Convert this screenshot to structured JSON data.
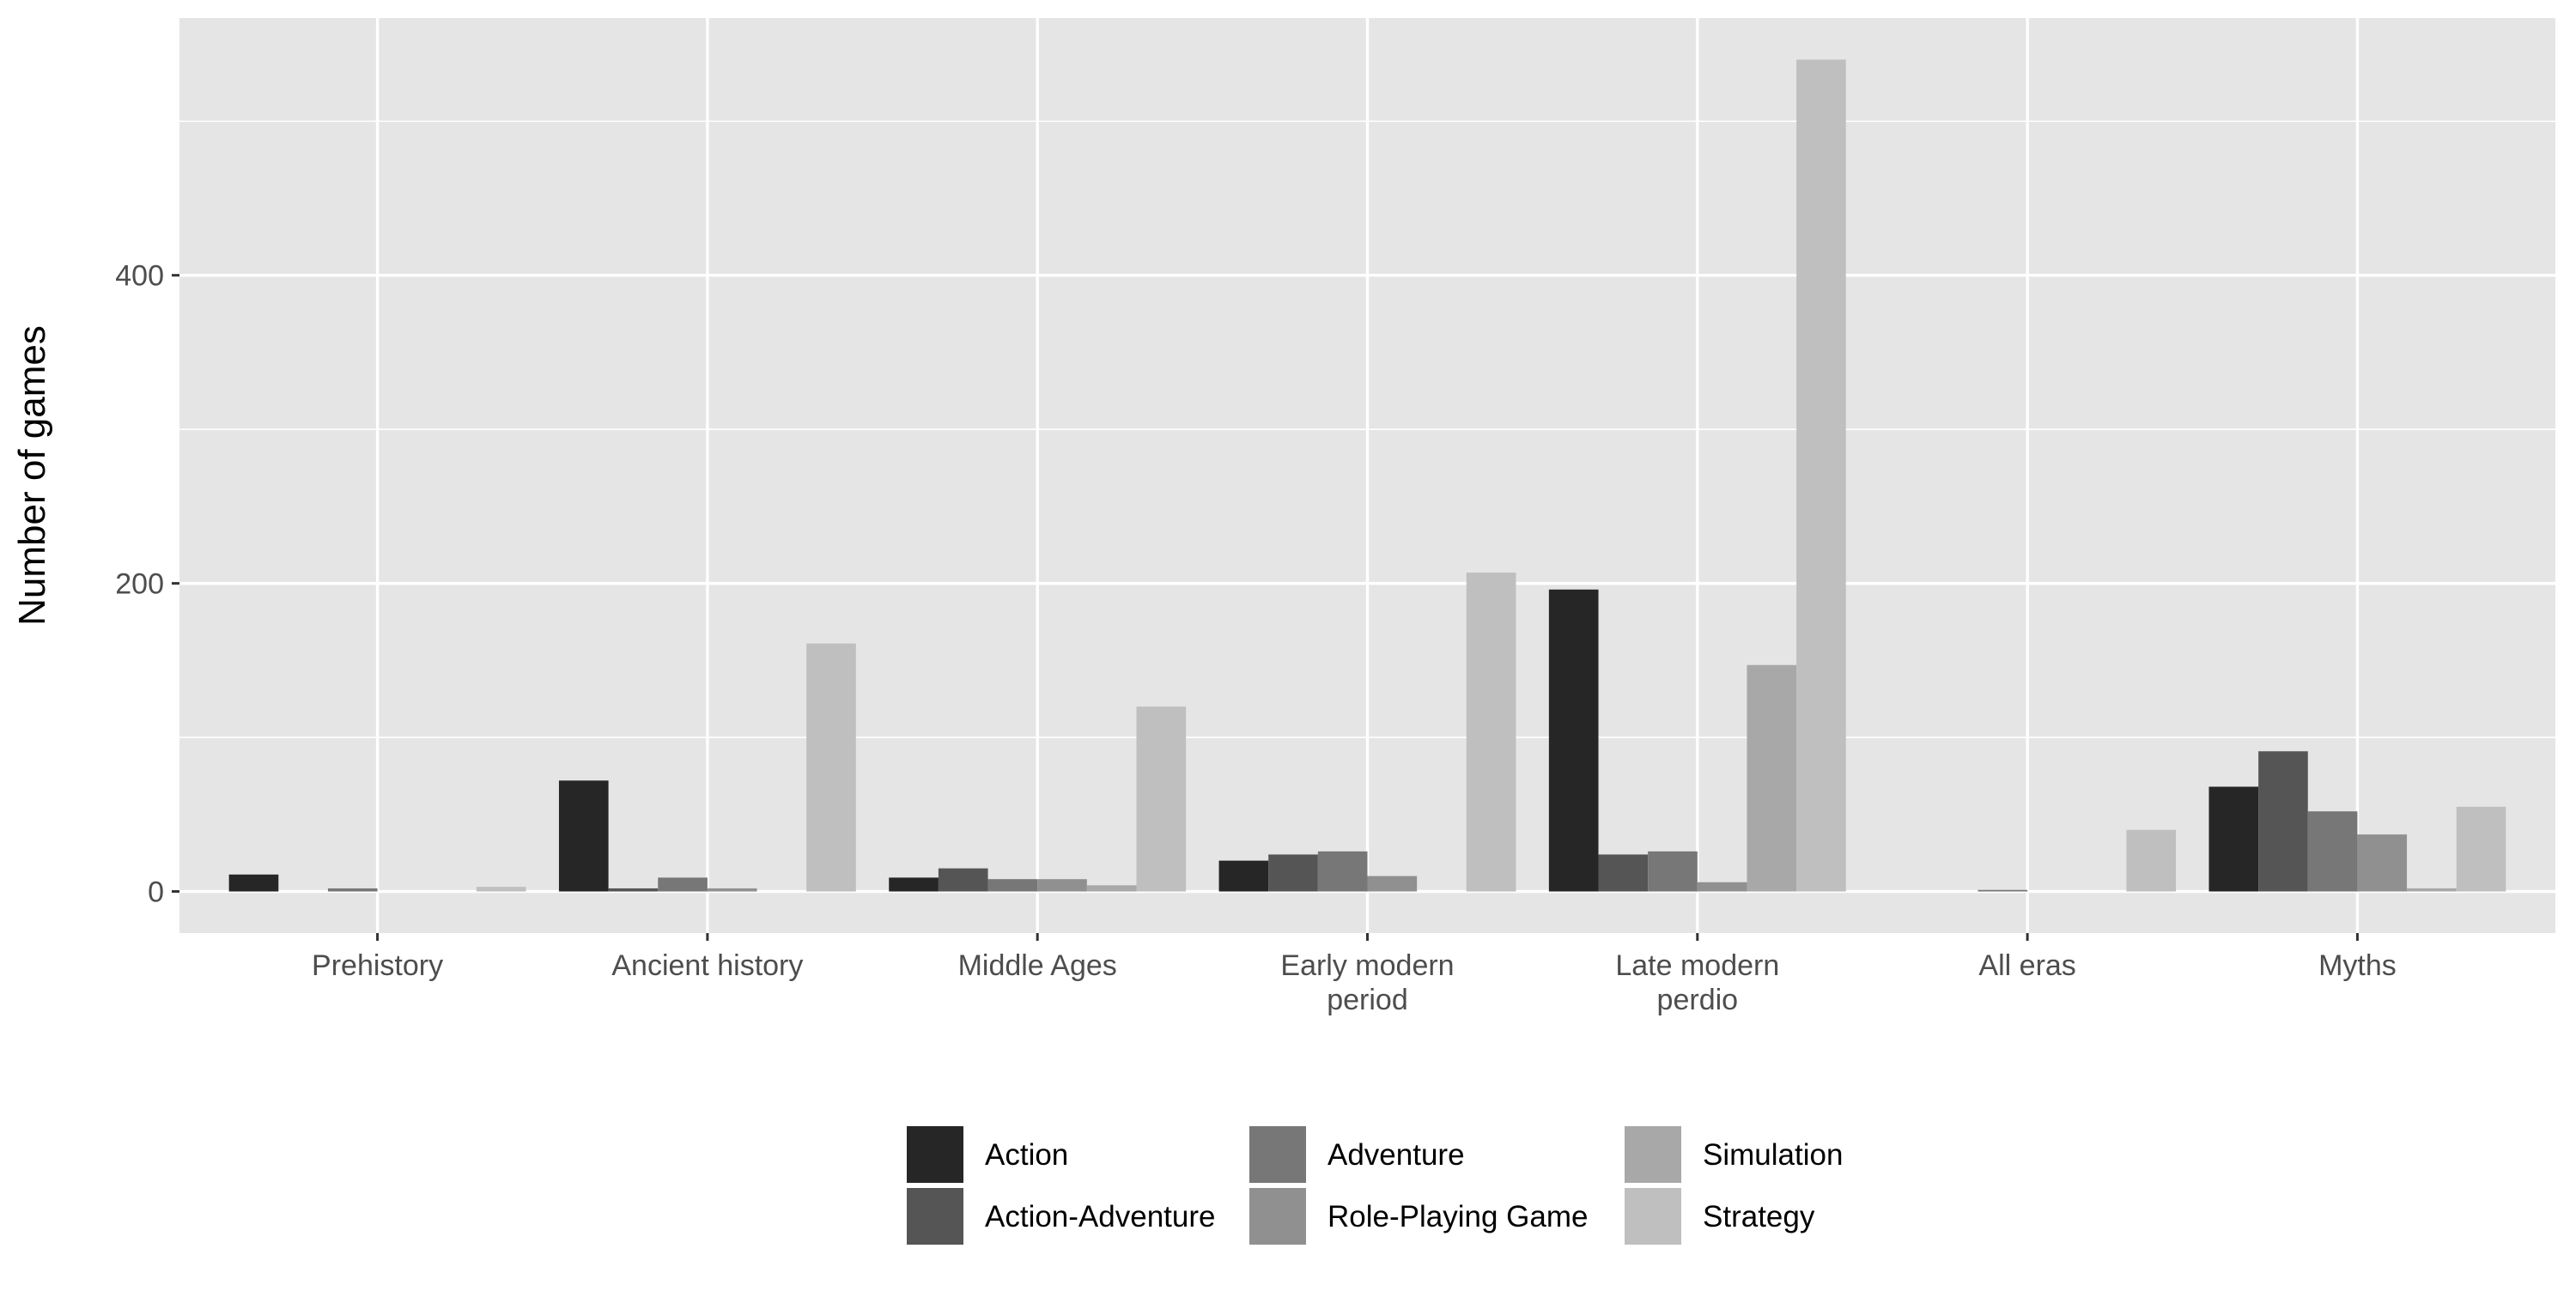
{
  "chart_data": {
    "type": "bar",
    "title": "",
    "xlabel": "",
    "ylabel": "Number of games",
    "categories": [
      [
        "Prehistory"
      ],
      [
        "Ancient history"
      ],
      [
        "Middle Ages"
      ],
      [
        "Early modern",
        "period"
      ],
      [
        "Late modern",
        "perdio"
      ],
      [
        "All eras"
      ],
      [
        "Myths"
      ]
    ],
    "series": [
      {
        "name": "Action",
        "color": "#262626",
        "values": [
          11,
          72,
          9,
          20,
          196,
          0,
          68
        ]
      },
      {
        "name": "Action-Adventure",
        "color": "#555555",
        "values": [
          0,
          2,
          15,
          24,
          24,
          0,
          91
        ]
      },
      {
        "name": "Adventure",
        "color": "#777777",
        "values": [
          2,
          9,
          8,
          26,
          26,
          1,
          52
        ]
      },
      {
        "name": "Role-Playing Game",
        "color": "#909090",
        "values": [
          0,
          2,
          8,
          10,
          6,
          0,
          37
        ]
      },
      {
        "name": "Simulation",
        "color": "#a8a8a8",
        "values": [
          0,
          0,
          4,
          0,
          147,
          0,
          2
        ]
      },
      {
        "name": "Strategy",
        "color": "#bfbfbf",
        "values": [
          3,
          161,
          120,
          207,
          540,
          40,
          55
        ]
      }
    ],
    "y_ticks": [
      0,
      200,
      400
    ],
    "ylim": [
      -27,
      567
    ],
    "grid": true,
    "panel_background": "#e5e5e5",
    "grid_color": "#ffffff",
    "legend_position": "bottom"
  }
}
